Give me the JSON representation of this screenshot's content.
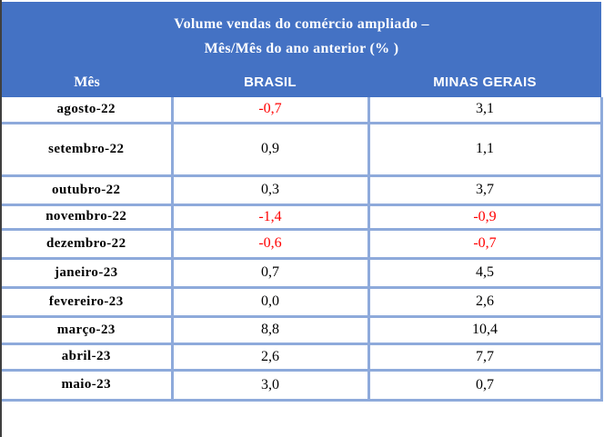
{
  "palette": {
    "header_blue": "#4472C4",
    "cell_border_blue": "#8EAADB",
    "negative_value_red": "#FF0000",
    "header_text_white": "#FFFFFF",
    "body_text_black": "#000000"
  },
  "header": {
    "title_line1": "Volume vendas do comércio ampliado –",
    "title_line2": "Mês/Mês do ano anterior (% )"
  },
  "table": {
    "columns": [
      "Mês",
      "BRASIL",
      "MINAS GERAIS"
    ],
    "rows": [
      {
        "month": "agosto-22",
        "brasil": "-0,7",
        "minas_gerais": "3,1"
      },
      {
        "month": "setembro-22",
        "brasil": "0,9",
        "minas_gerais": "1,1"
      },
      {
        "month": "outubro-22",
        "brasil": "0,3",
        "minas_gerais": "3,7"
      },
      {
        "month": "novembro-22",
        "brasil": "-1,4",
        "minas_gerais": "-0,9"
      },
      {
        "month": "dezembro-22",
        "brasil": "-0,6",
        "minas_gerais": "-0,7"
      },
      {
        "month": "janeiro-23",
        "brasil": "0,7",
        "minas_gerais": "4,5"
      },
      {
        "month": "fevereiro-23",
        "brasil": "0,0",
        "minas_gerais": "2,6"
      },
      {
        "month": "março-23",
        "brasil": "8,8",
        "minas_gerais": "10,4"
      },
      {
        "month": "abril-23",
        "brasil": "2,6",
        "minas_gerais": "7,7"
      },
      {
        "month": "maio-23",
        "brasil": "3,0",
        "minas_gerais": "0,7"
      }
    ]
  },
  "chart_data": {
    "type": "table",
    "title": "Volume vendas do comércio ampliado – Mês/Mês do ano anterior (%)",
    "categories": [
      "agosto-22",
      "setembro-22",
      "outubro-22",
      "novembro-22",
      "dezembro-22",
      "janeiro-23",
      "fevereiro-23",
      "março-23",
      "abril-23",
      "maio-23"
    ],
    "series": [
      {
        "name": "BRASIL",
        "values": [
          -0.7,
          0.9,
          0.3,
          -1.4,
          -0.6,
          0.7,
          0.0,
          8.8,
          2.6,
          3.0
        ]
      },
      {
        "name": "MINAS GERAIS",
        "values": [
          3.1,
          1.1,
          3.7,
          -0.9,
          -0.7,
          4.5,
          2.6,
          10.4,
          7.7,
          0.7
        ]
      }
    ]
  }
}
